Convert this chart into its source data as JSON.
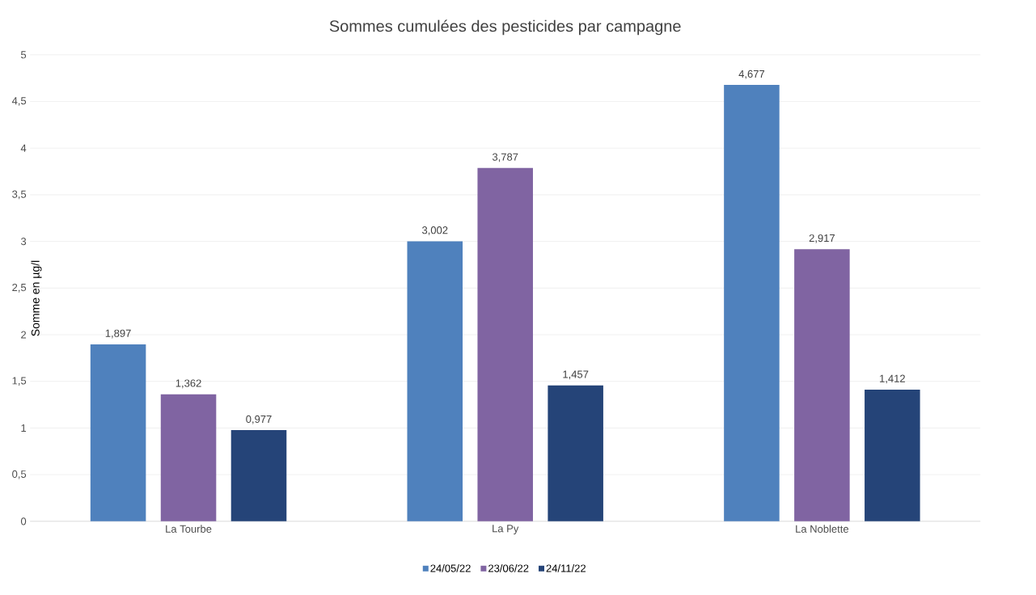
{
  "chart_data": {
    "type": "bar",
    "title": "Sommes cumulées des pesticides par campagne",
    "ylabel": "Somme en µg/l",
    "categories": [
      "La Tourbe",
      "La Py",
      "La Noblette"
    ],
    "series": [
      {
        "name": "24/05/22",
        "color": "#4f81bd",
        "values": [
          1.897,
          3.002,
          4.677
        ],
        "value_labels": [
          "1,897",
          "3,002",
          "4,677"
        ]
      },
      {
        "name": "23/06/22",
        "color": "#8064a2",
        "values": [
          1.362,
          3.787,
          2.917
        ],
        "value_labels": [
          "1,362",
          "3,787",
          "2,917"
        ]
      },
      {
        "name": "24/11/22",
        "color": "#254478",
        "values": [
          0.977,
          1.457,
          1.412
        ],
        "value_labels": [
          "0,977",
          "1,457",
          "1,412"
        ]
      }
    ],
    "ylim": [
      0,
      5
    ],
    "yticks": [
      0,
      {
        "value": 0.5,
        "label": "0,5"
      },
      1,
      {
        "value": 1.5,
        "label": "1,5"
      },
      2,
      {
        "value": 2.5,
        "label": "2,5"
      },
      3,
      {
        "value": 3.5,
        "label": "3,5"
      },
      4,
      {
        "value": 4.5,
        "label": "4,5"
      },
      5
    ],
    "grid": "y",
    "legend": "bottom"
  }
}
